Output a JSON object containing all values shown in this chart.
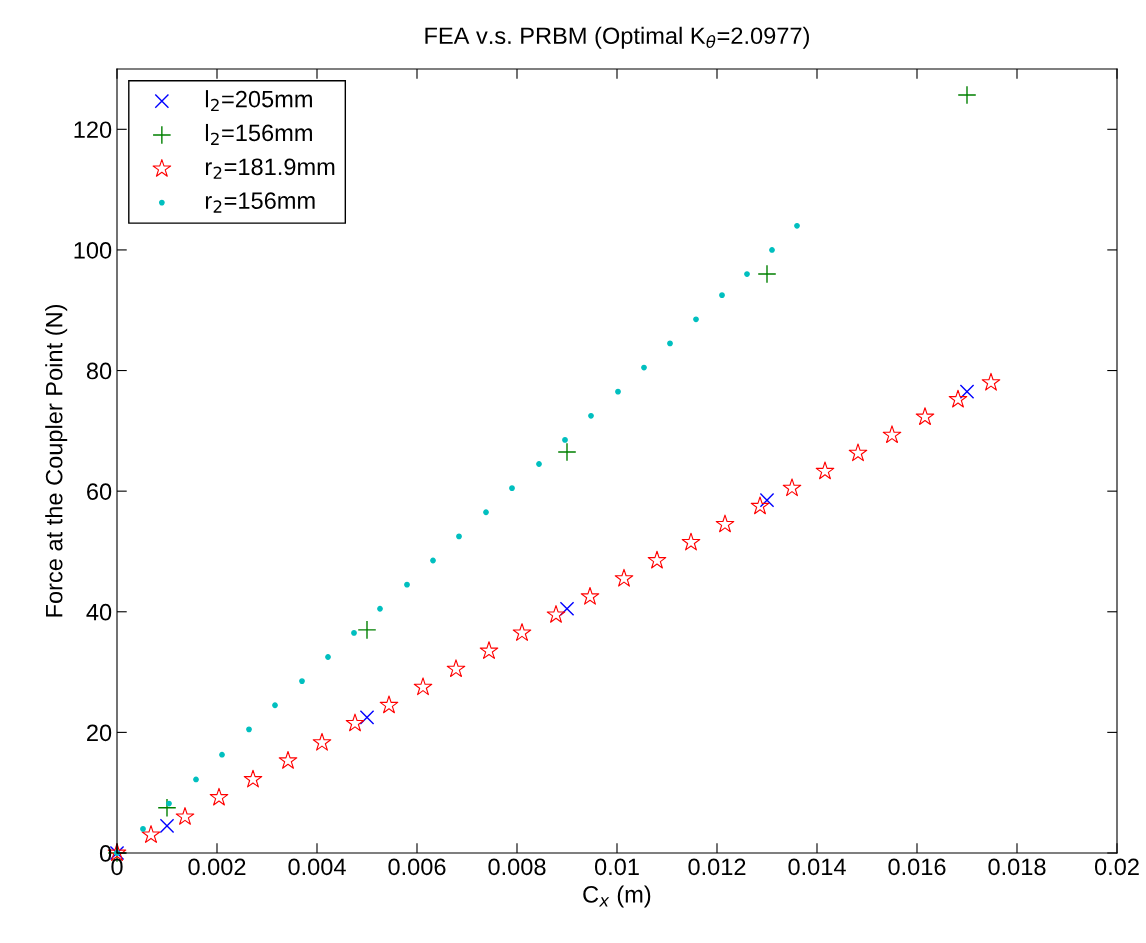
{
  "chart_data": {
    "type": "scatter",
    "title": "FEA v.s. PRBM (Optimal K$_{θ}$=2.0977)",
    "xlabel": "C$_{x}$ (m)",
    "ylabel": "Force at the Coupler Point (N)",
    "xlim": [
      0,
      0.02
    ],
    "ylim": [
      0,
      130
    ],
    "xticks": [
      0,
      0.002,
      0.004,
      0.006,
      0.008,
      0.01,
      0.012,
      0.014,
      0.016,
      0.018,
      0.02
    ],
    "yticks": [
      0,
      20,
      40,
      60,
      80,
      100,
      120
    ],
    "grid": false,
    "legend": "top left",
    "series": [
      {
        "name": "l$_{2}$=205mm",
        "color": "#0000ff",
        "marker": "cross",
        "x": [
          0,
          0.001,
          0.005,
          0.009,
          0.013,
          0.017
        ],
        "values": [
          0,
          4.5,
          22.5,
          40.5,
          58.5,
          76.5
        ]
      },
      {
        "name": "l$_{2}$=156mm",
        "color": "#008000",
        "marker": "plus",
        "x": [
          0,
          0.001,
          0.005,
          0.009,
          0.013,
          0.017
        ],
        "values": [
          0,
          7.5,
          37,
          66.5,
          96,
          125.7
        ]
      },
      {
        "name": "r$_{2}$=181.9mm",
        "color": "#ff0000",
        "marker": "star",
        "x": [
          0,
          0.00068,
          0.00136,
          0.00204,
          0.00272,
          0.00342,
          0.0041,
          0.00476,
          0.00544,
          0.00612,
          0.00678,
          0.00744,
          0.0081,
          0.00878,
          0.00946,
          0.01014,
          0.0108,
          0.01148,
          0.01216,
          0.01286,
          0.0135,
          0.01416,
          0.01482,
          0.0155,
          0.01616,
          0.01682,
          0.01748
        ],
        "values": [
          0,
          3,
          6,
          9.2,
          12.2,
          15.3,
          18.3,
          21.5,
          24.5,
          27.5,
          30.5,
          33.5,
          36.5,
          39.5,
          42.5,
          45.5,
          48.5,
          51.5,
          54.5,
          57.5,
          60.5,
          63.3,
          66.3,
          69.3,
          72.3,
          75.2,
          78
        ]
      },
      {
        "name": "r$_{2}$=156mm",
        "color": "#00bfbf",
        "marker": "point",
        "x": [
          0,
          0.00052,
          0.00104,
          0.00158,
          0.0021,
          0.00264,
          0.00316,
          0.0037,
          0.00422,
          0.00474,
          0.00526,
          0.0058,
          0.00632,
          0.00684,
          0.00738,
          0.0079,
          0.00844,
          0.00896,
          0.00948,
          0.01002,
          0.01054,
          0.01106,
          0.01158,
          0.0121,
          0.0126,
          0.0131,
          0.0136
        ],
        "values": [
          0,
          4,
          8.2,
          12.2,
          16.3,
          20.5,
          24.5,
          28.5,
          32.5,
          36.5,
          40.5,
          44.5,
          48.5,
          52.5,
          56.5,
          60.5,
          64.5,
          68.5,
          72.5,
          76.5,
          80.5,
          84.5,
          88.5,
          92.5,
          96,
          100,
          104
        ]
      }
    ]
  }
}
